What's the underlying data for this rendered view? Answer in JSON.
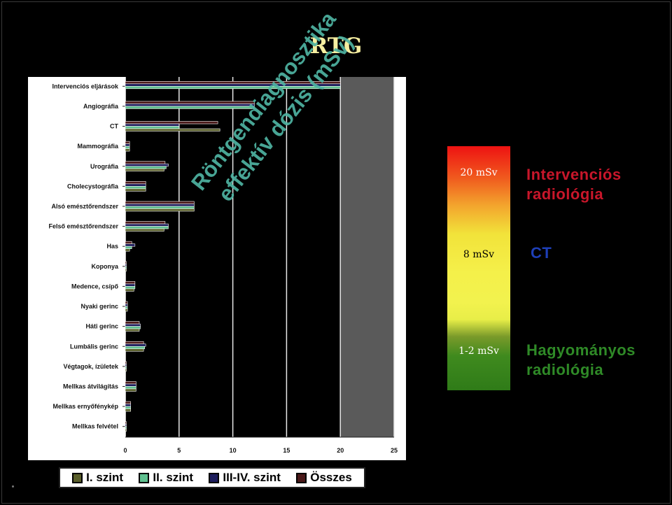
{
  "slide": {
    "title": "RTG"
  },
  "watermark": {
    "line1": "Röntgendiagnosztika",
    "line2": "effektív dózis (mSv)"
  },
  "colors": {
    "I_szint": "#5a5f2a",
    "II_szint": "#5fc08f",
    "III_IV_szint": "#1c1c5c",
    "osszes": "#4a1818",
    "background": "#000000",
    "intervention": "#c8162a",
    "ct": "#1e3fb8",
    "conventional": "#2f8a27"
  },
  "chart_data": {
    "type": "bar",
    "orientation": "horizontal",
    "categories": [
      "Intervenciós eljárások",
      "Angiográfia",
      "CT",
      "Mammográfia",
      "Urográfia",
      "Cholecystográfia",
      "Alsó emésztőrendszer",
      "Felső emésztőrendszer",
      "Has",
      "Koponya",
      "Medence, csípő",
      "Nyaki gerinc",
      "Háti gerinc",
      "Lumbális gerinc",
      "Végtagok, ízületek",
      "Mellkas átvilágítás",
      "Mellkas ernyőfénykép",
      "Mellkas felvétel"
    ],
    "series": [
      {
        "name": "I. szint",
        "values": [
          0,
          0,
          8.8,
          0.4,
          3.6,
          1.9,
          6.4,
          3.6,
          0.4,
          0.1,
          0.8,
          0.2,
          1.3,
          1.7,
          0.1,
          1.0,
          0.5,
          0.1
        ]
      },
      {
        "name": "II. szint",
        "values": [
          20,
          12,
          5,
          0.4,
          3.8,
          1.9,
          6.4,
          4.0,
          0.6,
          0.1,
          0.9,
          0.2,
          1.4,
          1.8,
          0.1,
          1.0,
          0.5,
          0.1
        ]
      },
      {
        "name": "III-IV. szint",
        "values": [
          20,
          12,
          5,
          0.4,
          4.0,
          1.9,
          6.4,
          4.0,
          0.9,
          0.1,
          0.9,
          0.2,
          1.4,
          1.9,
          0.1,
          1.0,
          0.5,
          0.1
        ]
      },
      {
        "name": "Összes",
        "values": [
          20,
          12,
          8.6,
          0.4,
          3.7,
          1.9,
          6.4,
          3.7,
          0.6,
          0.1,
          0.9,
          0.2,
          1.3,
          1.7,
          0.1,
          1.0,
          0.5,
          0.1
        ]
      }
    ],
    "xlim": [
      0,
      25
    ],
    "xticks": [
      0,
      5,
      10,
      15,
      20,
      25
    ],
    "shaded_region": [
      20,
      25
    ],
    "grid": true,
    "legend": "bottom"
  },
  "dose_scale": {
    "high": "20 mSv",
    "mid": "8 mSv",
    "low": "1-2 mSv",
    "labels": {
      "intervention_line1": "Intervenciós",
      "intervention_line2": "radiológia",
      "ct": "CT",
      "conventional_line1": "Hagyományos",
      "conventional_line2": "radiológia"
    }
  }
}
